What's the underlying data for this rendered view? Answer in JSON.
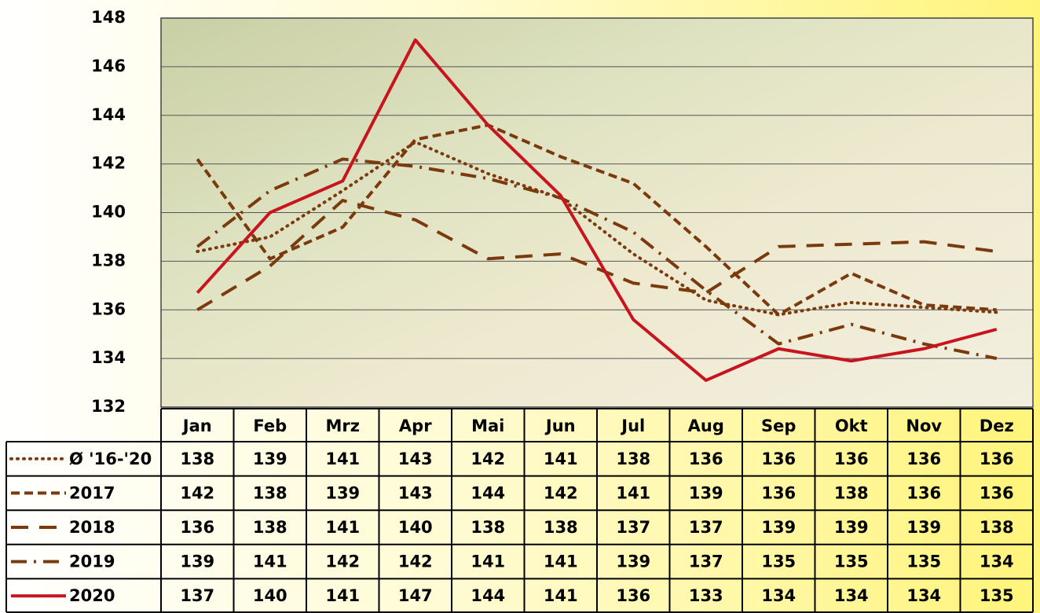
{
  "chart_data": {
    "type": "line",
    "categories": [
      "Jan",
      "Feb",
      "Mrz",
      "Apr",
      "Mai",
      "Jun",
      "Jul",
      "Aug",
      "Sep",
      "Okt",
      "Nov",
      "Dez"
    ],
    "ylim": [
      132,
      148
    ],
    "yticks": [
      132,
      134,
      136,
      138,
      140,
      142,
      144,
      146,
      148
    ],
    "grid": true,
    "series": [
      {
        "name": "Ø '16-'20",
        "color": "#7a3a0e",
        "line_style": "dotted",
        "values": [
          138.4,
          139.0,
          140.9,
          142.9,
          141.6,
          140.6,
          138.3,
          136.4,
          135.8,
          136.3,
          136.1,
          135.9
        ],
        "value_labels": [
          "138",
          "139",
          "141",
          "143",
          "142",
          "141",
          "138",
          "136",
          "136",
          "136",
          "136",
          "136"
        ]
      },
      {
        "name": "2017",
        "color": "#7a3a0e",
        "line_style": "short-dash",
        "values": [
          142.2,
          138.1,
          139.4,
          143.0,
          143.6,
          142.3,
          141.2,
          138.6,
          135.8,
          137.5,
          136.2,
          136.0
        ],
        "value_labels": [
          "142",
          "138",
          "139",
          "143",
          "144",
          "142",
          "141",
          "139",
          "136",
          "138",
          "136",
          "136"
        ]
      },
      {
        "name": "2018",
        "color": "#7a3a0e",
        "line_style": "long-dash",
        "values": [
          136.0,
          137.8,
          140.5,
          139.7,
          138.1,
          138.3,
          137.1,
          136.7,
          138.6,
          138.7,
          138.8,
          138.4
        ],
        "value_labels": [
          "136",
          "138",
          "141",
          "140",
          "138",
          "138",
          "137",
          "137",
          "139",
          "139",
          "139",
          "138"
        ]
      },
      {
        "name": "2019",
        "color": "#7a3a0e",
        "line_style": "dash-dot",
        "values": [
          138.6,
          140.9,
          142.2,
          141.9,
          141.4,
          140.6,
          139.2,
          136.8,
          134.6,
          135.4,
          134.6,
          134.0
        ],
        "value_labels": [
          "139",
          "141",
          "142",
          "142",
          "141",
          "141",
          "139",
          "137",
          "135",
          "135",
          "135",
          "134"
        ]
      },
      {
        "name": "2020",
        "color": "#c8141e",
        "line_style": "solid",
        "values": [
          136.7,
          140.0,
          141.3,
          147.1,
          143.6,
          140.7,
          135.6,
          133.1,
          134.4,
          133.9,
          134.4,
          135.2
        ],
        "value_labels": [
          "137",
          "140",
          "141",
          "147",
          "144",
          "141",
          "136",
          "133",
          "134",
          "134",
          "134",
          "135"
        ]
      }
    ]
  }
}
